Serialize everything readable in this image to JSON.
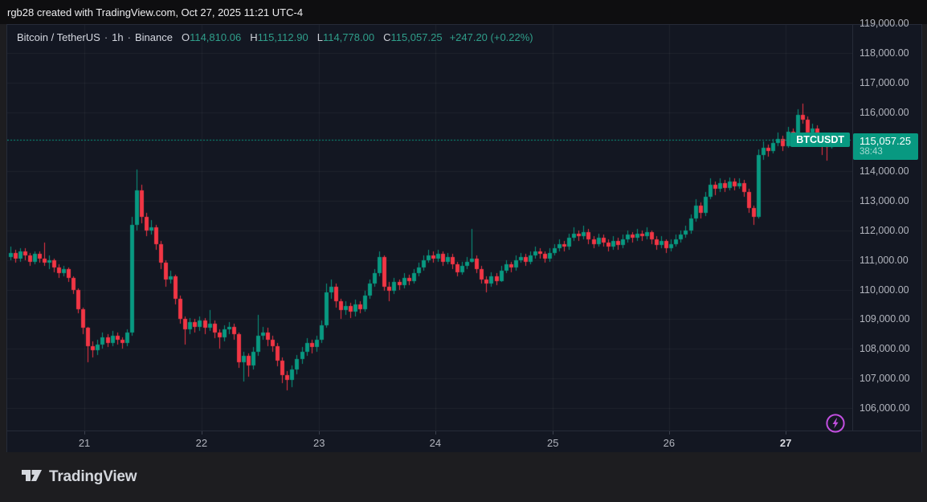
{
  "top_bar": {
    "text": "rgb28 created with TradingView.com, Oct 27, 2025 11:21 UTC-4"
  },
  "legend": {
    "symbol": "Bitcoin / TetherUS",
    "separator": "·",
    "interval": "1h",
    "exchange": "Binance",
    "ohlc": [
      {
        "label": "O",
        "value": "114,810.06"
      },
      {
        "label": "H",
        "value": "115,112.90"
      },
      {
        "label": "L",
        "value": "114,778.00"
      },
      {
        "label": "C",
        "value": "115,057.25"
      }
    ],
    "change": "+247.20 (+0.22%)"
  },
  "symbol_tag": "BTCUSDT",
  "price_scale": {
    "labels": [
      {
        "text": "119,000.00",
        "value": 119000
      },
      {
        "text": "118,000.00",
        "value": 118000
      },
      {
        "text": "117,000.00",
        "value": 117000
      },
      {
        "text": "116,000.00",
        "value": 116000
      },
      {
        "text": "114,000.00",
        "value": 114000
      },
      {
        "text": "113,000.00",
        "value": 113000
      },
      {
        "text": "112,000.00",
        "value": 112000
      },
      {
        "text": "111,000.00",
        "value": 111000
      },
      {
        "text": "110,000.00",
        "value": 110000
      },
      {
        "text": "109,000.00",
        "value": 109000
      },
      {
        "text": "108,000.00",
        "value": 108000
      },
      {
        "text": "107,000.00",
        "value": 107000
      },
      {
        "text": "106,000.00",
        "value": 106000
      }
    ],
    "last_price_text": "115,057.25",
    "countdown": "38:43"
  },
  "time_scale": {
    "ticks": [
      {
        "label": "21",
        "index": 15.3
      },
      {
        "label": "22",
        "index": 39.4
      },
      {
        "label": "23",
        "index": 63.6
      },
      {
        "label": "24",
        "index": 87.5
      },
      {
        "label": "25",
        "index": 111.7
      },
      {
        "label": "26",
        "index": 135.6
      },
      {
        "label": "27",
        "index": 159.6,
        "strong": true
      }
    ]
  },
  "footer": {
    "brand": "TradingView"
  },
  "boost_button": {
    "icon": "lightning-bolt"
  },
  "colors": {
    "up": "#089981",
    "down": "#f23645",
    "legend_value": "#2f9e8a",
    "boost": "#c24fe0",
    "grid": "rgba(255,255,255,0.05)"
  },
  "chart_data": {
    "type": "candlestick",
    "title": "Bitcoin / TetherUS",
    "symbol": "BTCUSDT",
    "interval": "1h",
    "exchange": "Binance",
    "x_axis": "Oct 20 - Oct 27, 2025, hourly bars; day tick positions given in time_scale.ticks as bar indices",
    "ylim": [
      105237,
      118950
    ],
    "grid": true,
    "last_close": 115057.25,
    "ohlc_format": [
      "open",
      "high",
      "low",
      "close"
    ],
    "candles": [
      [
        111100,
        111450,
        111000,
        111250
      ],
      [
        111250,
        111350,
        110900,
        111050
      ],
      [
        111050,
        111400,
        110950,
        111300
      ],
      [
        111300,
        111400,
        111000,
        111150
      ],
      [
        111150,
        111250,
        110800,
        110950
      ],
      [
        110950,
        111300,
        110850,
        111200
      ],
      [
        111200,
        111300,
        110900,
        111050
      ],
      [
        111050,
        111600,
        110800,
        110900
      ],
      [
        110900,
        111150,
        110700,
        111000
      ],
      [
        111000,
        111050,
        110600,
        110750
      ],
      [
        110750,
        110850,
        110400,
        110550
      ],
      [
        110550,
        110800,
        110450,
        110700
      ],
      [
        110700,
        110750,
        110250,
        110400
      ],
      [
        110400,
        110450,
        109850,
        110000
      ],
      [
        110000,
        110050,
        109200,
        109350
      ],
      [
        109350,
        109400,
        108500,
        108700
      ],
      [
        108700,
        108750,
        107550,
        108100
      ],
      [
        108100,
        108250,
        107700,
        107950
      ],
      [
        107950,
        108300,
        107800,
        108150
      ],
      [
        108150,
        108550,
        108000,
        108400
      ],
      [
        108400,
        108500,
        108050,
        108200
      ],
      [
        108200,
        108600,
        108100,
        108450
      ],
      [
        108450,
        108550,
        108150,
        108300
      ],
      [
        108300,
        108400,
        108000,
        108200
      ],
      [
        108200,
        108650,
        108100,
        108550
      ],
      [
        108550,
        112450,
        108450,
        112200
      ],
      [
        112200,
        114050,
        112000,
        113350
      ],
      [
        113350,
        113550,
        112250,
        112450
      ],
      [
        112450,
        112600,
        111800,
        112000
      ],
      [
        112000,
        112350,
        111850,
        112100
      ],
      [
        112100,
        112200,
        111350,
        111550
      ],
      [
        111550,
        111650,
        110700,
        110900
      ],
      [
        110900,
        111000,
        110100,
        110350
      ],
      [
        110350,
        110650,
        110200,
        110450
      ],
      [
        110450,
        110500,
        109500,
        109700
      ],
      [
        109700,
        109800,
        108850,
        109000
      ],
      [
        109000,
        109100,
        108150,
        108650
      ],
      [
        108650,
        109050,
        108500,
        108900
      ],
      [
        108900,
        109000,
        108550,
        108750
      ],
      [
        108750,
        109100,
        108600,
        108950
      ],
      [
        108950,
        109050,
        108500,
        108700
      ],
      [
        108700,
        109300,
        108600,
        108850
      ],
      [
        108850,
        108950,
        108350,
        108550
      ],
      [
        108550,
        108650,
        108000,
        108400
      ],
      [
        108400,
        108800,
        108250,
        108650
      ],
      [
        108650,
        108900,
        108500,
        108750
      ],
      [
        108750,
        108850,
        108300,
        108500
      ],
      [
        108500,
        108550,
        107350,
        107550
      ],
      [
        107550,
        107900,
        106900,
        107750
      ],
      [
        107750,
        107850,
        107050,
        107450
      ],
      [
        107450,
        108050,
        107300,
        107900
      ],
      [
        107900,
        109150,
        107750,
        108450
      ],
      [
        108450,
        108750,
        108300,
        108550
      ],
      [
        108550,
        108700,
        108100,
        108300
      ],
      [
        108300,
        108450,
        107900,
        108100
      ],
      [
        108100,
        108200,
        107400,
        107600
      ],
      [
        107600,
        107700,
        106850,
        107100
      ],
      [
        107100,
        107250,
        106600,
        106950
      ],
      [
        106950,
        107450,
        106700,
        107300
      ],
      [
        107300,
        107800,
        107150,
        107650
      ],
      [
        107650,
        108050,
        107500,
        107900
      ],
      [
        107900,
        108350,
        107750,
        108200
      ],
      [
        108200,
        108300,
        107850,
        108050
      ],
      [
        108050,
        108450,
        107900,
        108300
      ],
      [
        108300,
        108950,
        108200,
        108800
      ],
      [
        108800,
        110200,
        108700,
        109900
      ],
      [
        109900,
        110350,
        109700,
        110100
      ],
      [
        110100,
        110200,
        109400,
        109600
      ],
      [
        109600,
        109700,
        109000,
        109300
      ],
      [
        109300,
        109600,
        109150,
        109450
      ],
      [
        109450,
        109550,
        109050,
        109250
      ],
      [
        109250,
        109650,
        109100,
        109500
      ],
      [
        109500,
        109600,
        109200,
        109350
      ],
      [
        109350,
        109950,
        109250,
        109800
      ],
      [
        109800,
        110350,
        109700,
        110200
      ],
      [
        110200,
        110700,
        110100,
        110550
      ],
      [
        110550,
        111300,
        110450,
        111100
      ],
      [
        111100,
        111150,
        109950,
        110100
      ],
      [
        110100,
        110250,
        109600,
        109950
      ],
      [
        109950,
        110400,
        109850,
        110250
      ],
      [
        110250,
        110350,
        110000,
        110150
      ],
      [
        110150,
        110550,
        110050,
        110400
      ],
      [
        110400,
        110500,
        110150,
        110300
      ],
      [
        110300,
        110700,
        110200,
        110550
      ],
      [
        110550,
        110900,
        110450,
        110750
      ],
      [
        110750,
        111150,
        110650,
        111000
      ],
      [
        111000,
        111350,
        110900,
        111150
      ],
      [
        111150,
        111300,
        110900,
        111050
      ],
      [
        111050,
        111350,
        110950,
        111200
      ],
      [
        111200,
        111300,
        110800,
        110950
      ],
      [
        110950,
        111250,
        110850,
        111100
      ],
      [
        111100,
        111200,
        110700,
        110850
      ],
      [
        110850,
        110950,
        110450,
        110600
      ],
      [
        110600,
        110950,
        110500,
        110800
      ],
      [
        110800,
        111100,
        110700,
        110950
      ],
      [
        110950,
        112050,
        110900,
        111050
      ],
      [
        111050,
        111150,
        110550,
        110700
      ],
      [
        110700,
        110800,
        110200,
        110350
      ],
      [
        110350,
        110450,
        109900,
        110200
      ],
      [
        110200,
        110600,
        110100,
        110450
      ],
      [
        110450,
        110550,
        110150,
        110300
      ],
      [
        110300,
        110800,
        110250,
        110650
      ],
      [
        110650,
        111000,
        110550,
        110850
      ],
      [
        110850,
        110950,
        110600,
        110750
      ],
      [
        110750,
        111150,
        110650,
        111000
      ],
      [
        111000,
        111250,
        110900,
        111100
      ],
      [
        111100,
        111200,
        110800,
        110950
      ],
      [
        110950,
        111300,
        110850,
        111150
      ],
      [
        111150,
        111450,
        111050,
        111300
      ],
      [
        111300,
        111400,
        111050,
        111200
      ],
      [
        111200,
        111300,
        110900,
        111050
      ],
      [
        111050,
        111400,
        110950,
        111250
      ],
      [
        111250,
        111550,
        111150,
        111400
      ],
      [
        111400,
        111700,
        111300,
        111550
      ],
      [
        111550,
        111650,
        111300,
        111450
      ],
      [
        111450,
        111900,
        111350,
        111750
      ],
      [
        111750,
        112100,
        111650,
        111900
      ],
      [
        111900,
        112000,
        111650,
        111800
      ],
      [
        111800,
        112150,
        111700,
        111950
      ],
      [
        111950,
        112050,
        111550,
        111700
      ],
      [
        111700,
        111800,
        111400,
        111550
      ],
      [
        111550,
        111900,
        111450,
        111750
      ],
      [
        111750,
        111850,
        111450,
        111600
      ],
      [
        111600,
        111700,
        111300,
        111450
      ],
      [
        111450,
        111800,
        111350,
        111650
      ],
      [
        111650,
        111750,
        111350,
        111500
      ],
      [
        111500,
        111850,
        111400,
        111700
      ],
      [
        111700,
        112000,
        111600,
        111850
      ],
      [
        111850,
        111950,
        111600,
        111750
      ],
      [
        111750,
        112050,
        111650,
        111900
      ],
      [
        111900,
        112000,
        111650,
        111800
      ],
      [
        111800,
        112100,
        111700,
        111950
      ],
      [
        111950,
        112000,
        111550,
        111700
      ],
      [
        111700,
        111800,
        111350,
        111500
      ],
      [
        111500,
        111800,
        111400,
        111650
      ],
      [
        111650,
        111700,
        111250,
        111400
      ],
      [
        111400,
        111700,
        111300,
        111550
      ],
      [
        111550,
        111850,
        111450,
        111700
      ],
      [
        111700,
        112000,
        111600,
        111850
      ],
      [
        111850,
        112150,
        111750,
        112000
      ],
      [
        112000,
        112550,
        111900,
        112400
      ],
      [
        112400,
        113050,
        112300,
        112850
      ],
      [
        112850,
        112950,
        112400,
        112600
      ],
      [
        112600,
        113300,
        112500,
        113150
      ],
      [
        113150,
        113750,
        113050,
        113550
      ],
      [
        113550,
        113650,
        113200,
        113400
      ],
      [
        113400,
        113750,
        113300,
        113600
      ],
      [
        113600,
        113700,
        113300,
        113450
      ],
      [
        113450,
        113800,
        113350,
        113650
      ],
      [
        113650,
        113750,
        113350,
        113500
      ],
      [
        113500,
        113750,
        113400,
        113600
      ],
      [
        113600,
        113700,
        113150,
        113300
      ],
      [
        113300,
        113400,
        112600,
        112750
      ],
      [
        112750,
        112850,
        112200,
        112450
      ],
      [
        112450,
        114750,
        112400,
        114550
      ],
      [
        114550,
        115000,
        114400,
        114800
      ],
      [
        114800,
        114900,
        114500,
        114700
      ],
      [
        114700,
        115100,
        114600,
        114950
      ],
      [
        114950,
        115300,
        114850,
        115100
      ],
      [
        115100,
        115200,
        114700,
        114850
      ],
      [
        114850,
        115500,
        114800,
        115350
      ],
      [
        115350,
        115450,
        115050,
        115200
      ],
      [
        115200,
        116100,
        115150,
        115900
      ],
      [
        115900,
        116300,
        115600,
        115750
      ],
      [
        115750,
        115850,
        115150,
        115300
      ],
      [
        115300,
        115600,
        115200,
        115450
      ],
      [
        115450,
        115550,
        115000,
        115150
      ],
      [
        115150,
        115250,
        114550,
        114900
      ],
      [
        114900,
        115000,
        114350,
        114810
      ],
      [
        114810.06,
        115112.9,
        114778,
        115057.25
      ]
    ]
  }
}
